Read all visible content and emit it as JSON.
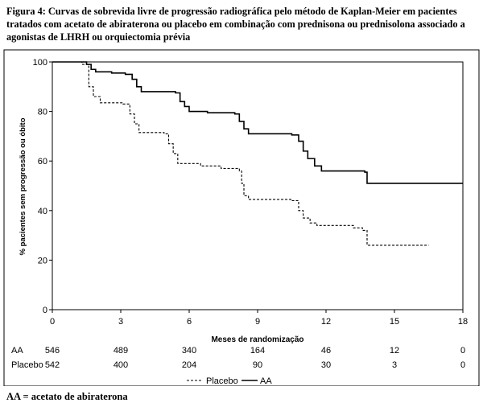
{
  "title": "Figura 4: Curvas de sobrevida livre de progressão radiográfica pelo método de Kaplan-Meier em pacientes tratados com acetato de abiraterona ou placebo em combinação com prednisona ou prednisolona associado a agonistas de LHRH ou orquiectomia prévia",
  "footnote": "AA = acetato de abiraterona",
  "risk_table": {
    "rows": [
      {
        "label": "AA",
        "values": [
          "546",
          "489",
          "340",
          "164",
          "46",
          "12",
          "0"
        ]
      },
      {
        "label": "Placebo",
        "values": [
          "542",
          "400",
          "204",
          "90",
          "30",
          "3",
          "0"
        ]
      }
    ]
  },
  "chart_data": {
    "type": "line",
    "title": "",
    "xlabel": "Meses de randomização",
    "ylabel": "% pacientes sem progressão ou óbito",
    "xlim": [
      0,
      18
    ],
    "ylim": [
      0,
      100
    ],
    "xticks": [
      0,
      3,
      6,
      9,
      12,
      15,
      18
    ],
    "yticks": [
      0,
      20,
      40,
      60,
      80,
      100
    ],
    "grid": false,
    "legend": {
      "position": "bottom",
      "entries": [
        "Placebo",
        "AA"
      ]
    },
    "series": [
      {
        "name": "AA",
        "style": "solid",
        "color": "#000000",
        "step": true,
        "points": [
          [
            0,
            100
          ],
          [
            0.6,
            100
          ],
          [
            1.5,
            99
          ],
          [
            1.7,
            97
          ],
          [
            1.9,
            96
          ],
          [
            2.6,
            95.5
          ],
          [
            3.2,
            95
          ],
          [
            3.5,
            93
          ],
          [
            3.7,
            90
          ],
          [
            3.9,
            88
          ],
          [
            5.4,
            87.5
          ],
          [
            5.6,
            84
          ],
          [
            5.8,
            82
          ],
          [
            6.0,
            80
          ],
          [
            6.8,
            79.5
          ],
          [
            8.0,
            79
          ],
          [
            8.2,
            76
          ],
          [
            8.4,
            73
          ],
          [
            8.6,
            71
          ],
          [
            10.5,
            70.5
          ],
          [
            10.8,
            68
          ],
          [
            11.0,
            64
          ],
          [
            11.2,
            61
          ],
          [
            11.5,
            58
          ],
          [
            11.8,
            56
          ],
          [
            13.7,
            55.5
          ],
          [
            13.8,
            51
          ],
          [
            18,
            51
          ]
        ]
      },
      {
        "name": "Placebo",
        "style": "dashed",
        "color": "#000000",
        "step": true,
        "points": [
          [
            0,
            100
          ],
          [
            0.6,
            100
          ],
          [
            1.3,
            99
          ],
          [
            1.6,
            90
          ],
          [
            1.8,
            86
          ],
          [
            2.1,
            83.5
          ],
          [
            3.1,
            83
          ],
          [
            3.4,
            79
          ],
          [
            3.6,
            75
          ],
          [
            3.8,
            71.5
          ],
          [
            4.9,
            71
          ],
          [
            5.1,
            67
          ],
          [
            5.3,
            63
          ],
          [
            5.5,
            59
          ],
          [
            6.5,
            58
          ],
          [
            7.4,
            57
          ],
          [
            8.2,
            56
          ],
          [
            8.3,
            51
          ],
          [
            8.4,
            46
          ],
          [
            8.6,
            44.5
          ],
          [
            10.5,
            44
          ],
          [
            10.8,
            40
          ],
          [
            11.0,
            37
          ],
          [
            11.3,
            35
          ],
          [
            11.6,
            34
          ],
          [
            12.9,
            34
          ],
          [
            13.2,
            33
          ],
          [
            13.6,
            32
          ],
          [
            13.8,
            26
          ],
          [
            16.5,
            26
          ]
        ]
      }
    ]
  }
}
